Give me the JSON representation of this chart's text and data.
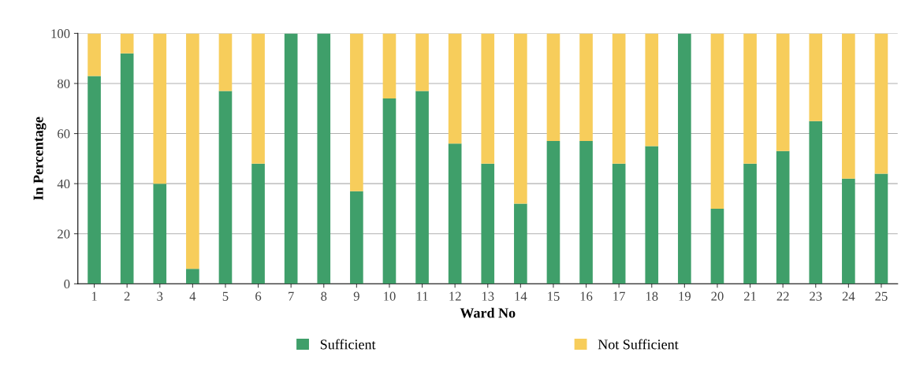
{
  "chart_data": {
    "type": "bar",
    "stacked": true,
    "xlabel": "Ward No",
    "ylabel": "In Percentage",
    "categories": [
      "1",
      "2",
      "3",
      "4",
      "5",
      "6",
      "7",
      "8",
      "9",
      "10",
      "11",
      "12",
      "13",
      "14",
      "15",
      "16",
      "17",
      "18",
      "19",
      "20",
      "21",
      "22",
      "23",
      "24",
      "25"
    ],
    "series": [
      {
        "name": "Sufficient",
        "color": "#3f9f6a",
        "values": [
          83,
          92,
          40,
          6,
          77,
          48,
          100,
          100,
          37,
          74,
          77,
          56,
          48,
          32,
          57,
          57,
          48,
          55,
          100,
          30,
          48,
          53,
          65,
          42,
          44
        ]
      },
      {
        "name": "Not Sufficient",
        "color": "#f7cd5b",
        "values": [
          17,
          8,
          60,
          94,
          23,
          52,
          0,
          0,
          63,
          26,
          23,
          44,
          52,
          68,
          43,
          43,
          52,
          45,
          0,
          70,
          52,
          47,
          35,
          58,
          56
        ]
      }
    ],
    "ylim": [
      0,
      100
    ],
    "yticks": [
      0,
      20,
      40,
      60,
      80,
      100
    ],
    "grid": "y",
    "legend": "bottom"
  }
}
